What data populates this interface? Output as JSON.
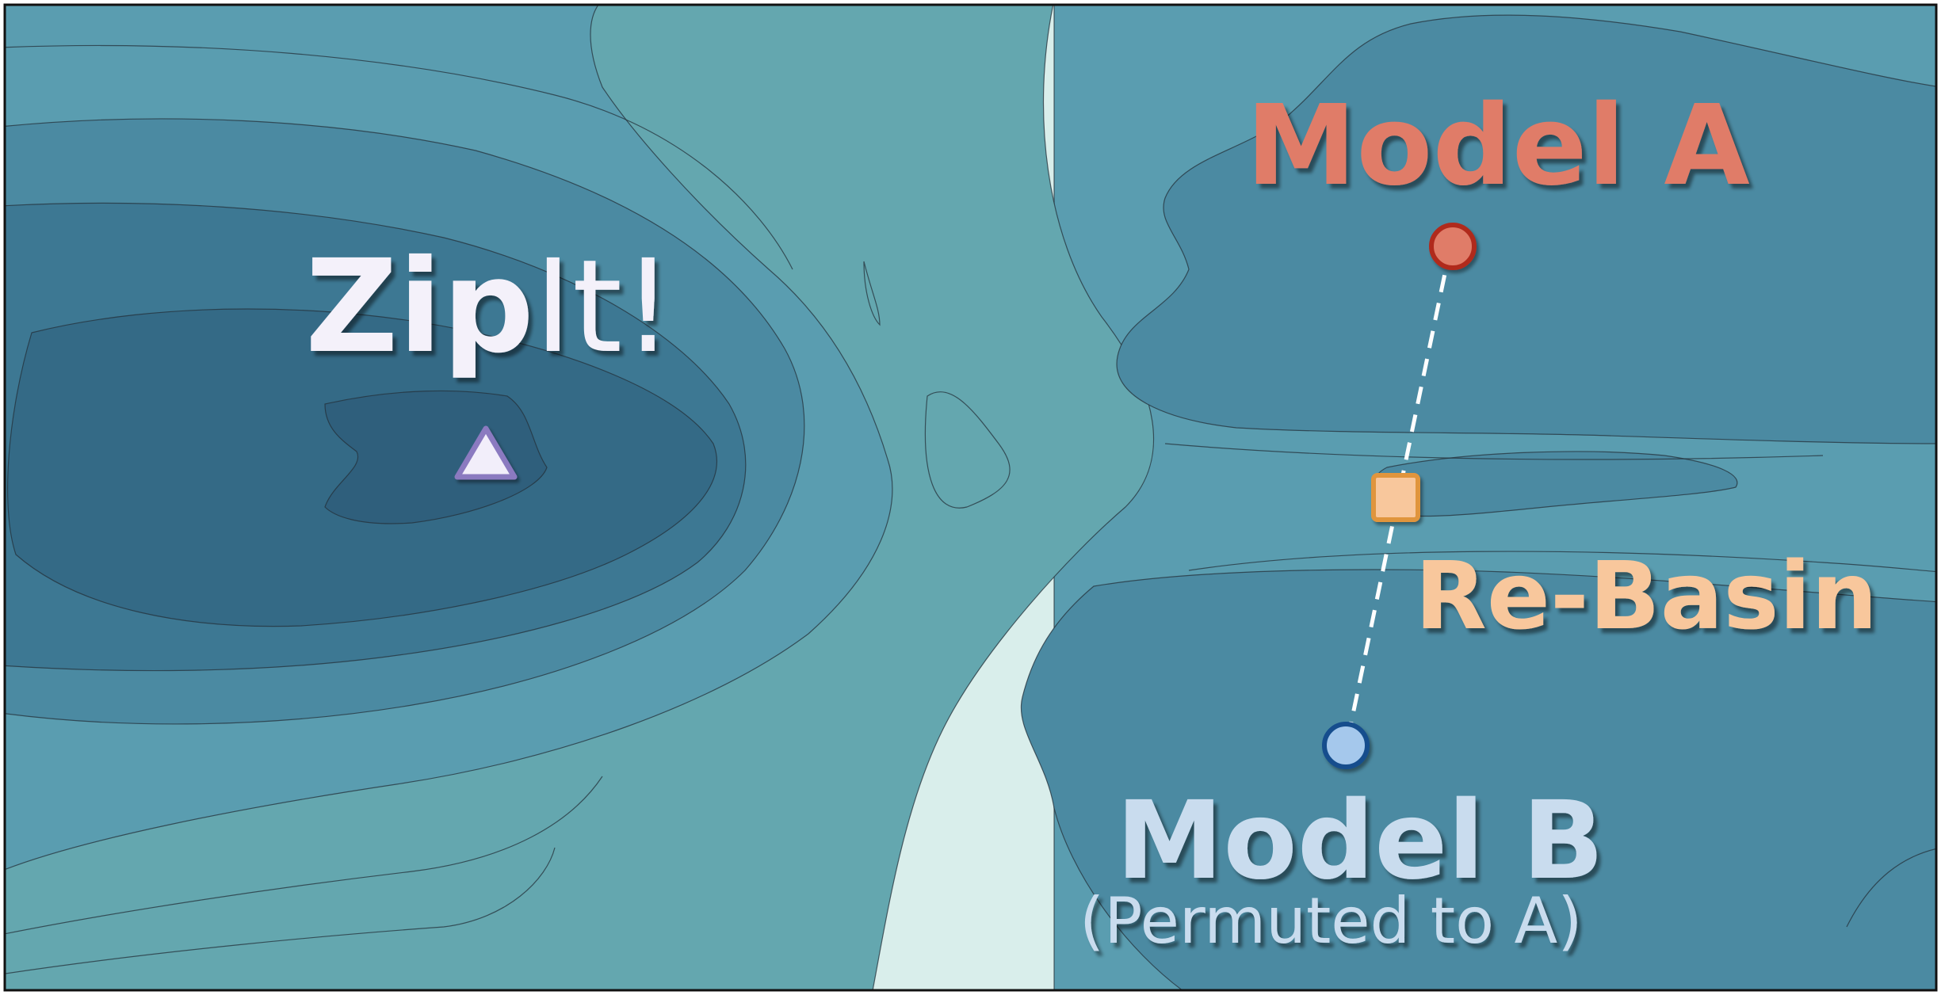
{
  "labels": {
    "zipit_bold": "Zip",
    "zipit_light": "It!",
    "model_a": "Model A",
    "re_basin": "Re-Basin",
    "model_b": "Model B",
    "model_b_sub": "(Permuted to A)"
  },
  "colors": {
    "frame": "#111111",
    "zipit_text": "#f4f1fa",
    "zipit_marker_fill": "#f2eefa",
    "zipit_marker_stroke": "#8b7ac0",
    "model_a": "#e07b68",
    "model_a_marker_stroke": "#b02a1e",
    "re_basin": "#f8c79c",
    "re_basin_marker_stroke": "#e0953d",
    "model_b": "#c9dcee",
    "model_b_marker_fill": "#a5c8ec",
    "model_b_marker_stroke": "#124e8d",
    "connector": "#ffffff"
  },
  "markers": {
    "zipit": "triangle-marker",
    "model_a": "circle-marker",
    "re_basin": "square-marker",
    "model_b": "circle-marker"
  }
}
